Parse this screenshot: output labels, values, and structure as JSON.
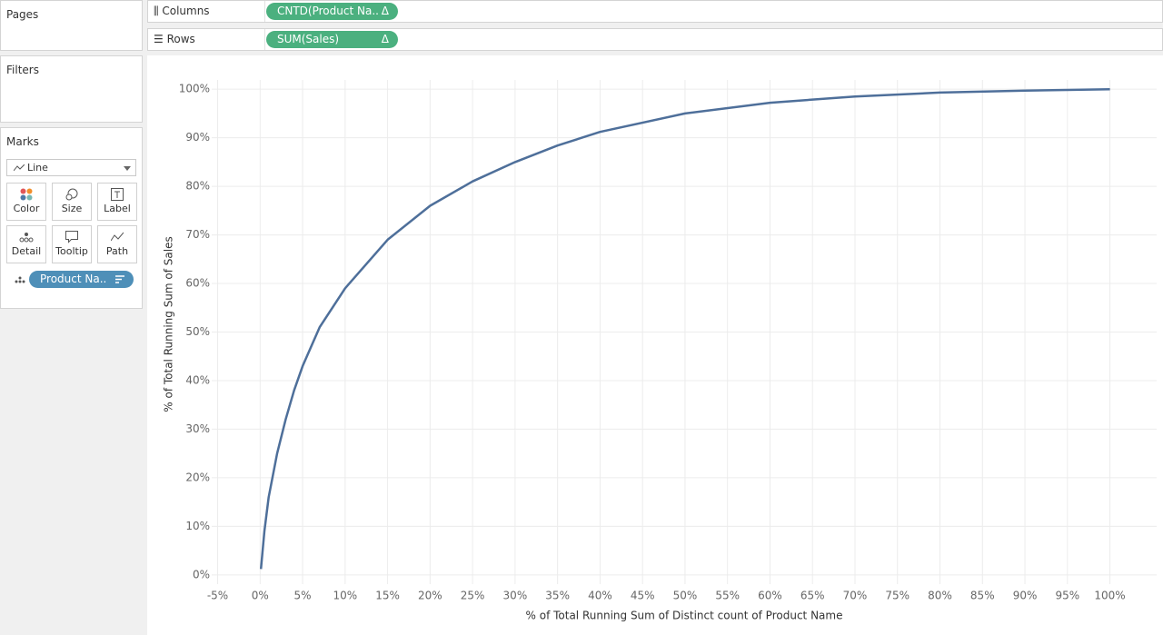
{
  "pages": {
    "title": "Pages"
  },
  "filters": {
    "title": "Filters"
  },
  "marks": {
    "title": "Marks",
    "mark_type": "Line",
    "buttons": [
      "Color",
      "Size",
      "Label",
      "Detail",
      "Tooltip",
      "Path"
    ],
    "pill": "Product Na.."
  },
  "shelves": {
    "columns": {
      "label": "Columns",
      "pill": "CNTD(Product Na..",
      "flag": "Δ"
    },
    "rows": {
      "label": "Rows",
      "pill": "SUM(Sales)",
      "flag": "Δ"
    }
  },
  "chart_data": {
    "type": "line",
    "x_label": "% of Total Running Sum of Distinct count of Product Name",
    "y_label": "% of Total Running Sum of Sales",
    "x": [
      0.1,
      0.5,
      1,
      2,
      3,
      4,
      5,
      7,
      10,
      15,
      20,
      25,
      30,
      35,
      40,
      50,
      60,
      70,
      80,
      90,
      100
    ],
    "values": [
      1.2,
      9,
      16,
      25,
      32,
      38,
      43,
      51,
      59,
      69,
      76,
      81,
      85,
      88.4,
      91.2,
      95,
      97.2,
      98.5,
      99.3,
      99.7,
      100
    ],
    "color": "#4e6f9a",
    "xlim": [
      -5.7,
      105.5
    ],
    "ylim": [
      -1.9,
      101.9
    ],
    "xticks": [
      {
        "value": -5,
        "label": "-5%"
      },
      {
        "value": 0,
        "label": "0%"
      },
      {
        "value": 5,
        "label": "5%"
      },
      {
        "value": 10,
        "label": "10%"
      },
      {
        "value": 15,
        "label": "15%"
      },
      {
        "value": 20,
        "label": "20%"
      },
      {
        "value": 25,
        "label": "25%"
      },
      {
        "value": 30,
        "label": "30%"
      },
      {
        "value": 35,
        "label": "35%"
      },
      {
        "value": 40,
        "label": "40%"
      },
      {
        "value": 45,
        "label": "45%"
      },
      {
        "value": 50,
        "label": "50%"
      },
      {
        "value": 55,
        "label": "55%"
      },
      {
        "value": 60,
        "label": "60%"
      },
      {
        "value": 65,
        "label": "65%"
      },
      {
        "value": 70,
        "label": "70%"
      },
      {
        "value": 75,
        "label": "75%"
      },
      {
        "value": 80,
        "label": "80%"
      },
      {
        "value": 85,
        "label": "85%"
      },
      {
        "value": 90,
        "label": "90%"
      },
      {
        "value": 95,
        "label": "95%"
      },
      {
        "value": 100,
        "label": "100%"
      }
    ],
    "yticks": [
      {
        "value": 0,
        "label": "0%"
      },
      {
        "value": 10,
        "label": "10%"
      },
      {
        "value": 20,
        "label": "20%"
      },
      {
        "value": 30,
        "label": "30%"
      },
      {
        "value": 40,
        "label": "40%"
      },
      {
        "value": 50,
        "label": "50%"
      },
      {
        "value": 60,
        "label": "60%"
      },
      {
        "value": 70,
        "label": "70%"
      },
      {
        "value": 80,
        "label": "80%"
      },
      {
        "value": 90,
        "label": "90%"
      },
      {
        "value": 100,
        "label": "100%"
      }
    ],
    "grid": true
  }
}
